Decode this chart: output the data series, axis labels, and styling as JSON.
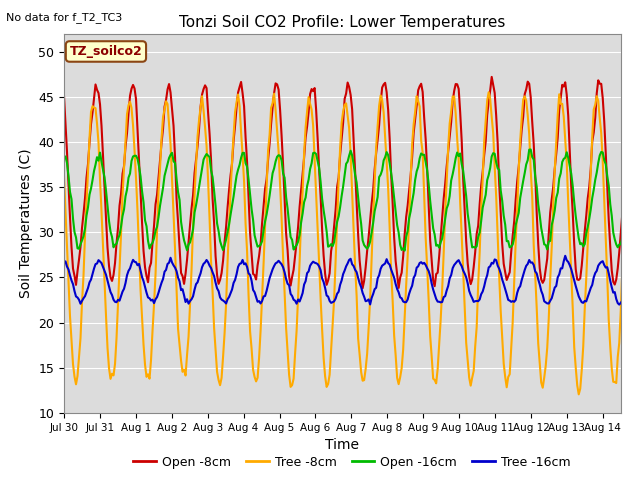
{
  "title": "Tonzi Soil CO2 Profile: Lower Temperatures",
  "subtitle": "No data for f_T2_TC3",
  "xlabel": "Time",
  "ylabel": "Soil Temperatures (C)",
  "ylim": [
    10,
    52
  ],
  "yticks": [
    10,
    15,
    20,
    25,
    30,
    35,
    40,
    45,
    50
  ],
  "legend_label": "TZ_soilco2",
  "series_labels": [
    "Open -8cm",
    "Tree -8cm",
    "Open -16cm",
    "Tree -16cm"
  ],
  "series_colors": [
    "#cc0000",
    "#ffaa00",
    "#00bb00",
    "#0000cc"
  ],
  "background_color": "#dcdcdc",
  "grid_color": "#ffffff",
  "figsize": [
    6.4,
    4.8
  ],
  "dpi": 100,
  "n_points_per_day": 24,
  "n_days": 16,
  "open8_mid": 35.5,
  "open8_amp": 12.0,
  "open8_phase": 0.62,
  "tree8_mid": 29.0,
  "tree8_amp": 15.5,
  "tree8_phase": 0.58,
  "open16_mid": 33.5,
  "open16_amp": 5.5,
  "open16_phase": 0.7,
  "tree16_mid": 24.5,
  "tree16_amp": 2.3,
  "tree16_phase": 0.72
}
